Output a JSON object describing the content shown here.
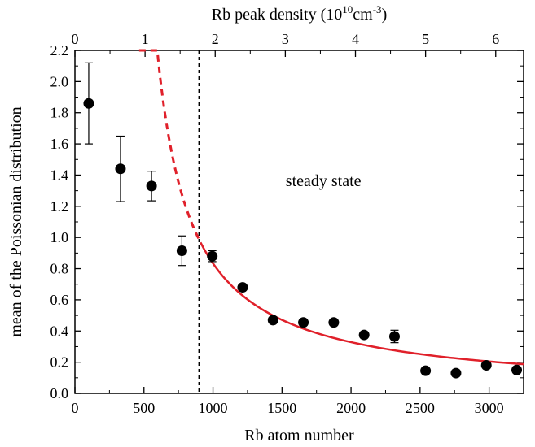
{
  "chart_data": {
    "type": "scatter",
    "xlabel": "Rb atom number",
    "ylabel": "mean of the Poissonian distribution",
    "top_xlabel": "Rb peak density (10",
    "top_xlabel_sup1": "10",
    "top_xlabel_mid": "cm",
    "top_xlabel_sup2": "-3",
    "top_xlabel_end": ")",
    "xlim": [
      0,
      3250
    ],
    "ylim": [
      0.0,
      2.2
    ],
    "x_ticks": [
      0,
      500,
      1000,
      1500,
      2000,
      2500,
      3000
    ],
    "x_tick_labels": [
      "0",
      "500",
      "1000",
      "1500",
      "2000",
      "2500",
      "3000"
    ],
    "y_ticks": [
      0.0,
      0.2,
      0.4,
      0.6,
      0.8,
      1.0,
      1.2,
      1.4,
      1.6,
      1.8,
      2.0,
      2.2
    ],
    "y_tick_labels": [
      "0.0",
      "0.2",
      "0.4",
      "0.6",
      "0.8",
      "1.0",
      "1.2",
      "1.4",
      "1.6",
      "1.8",
      "2.0",
      "2.2"
    ],
    "top_axis": {
      "ticks_density": [
        0,
        1,
        2,
        3,
        4,
        5,
        6
      ],
      "tick_labels": [
        "0",
        "1",
        "2",
        "3",
        "4",
        "5",
        "6"
      ],
      "atoms_per_density_unit": 508
    },
    "series": [
      {
        "points": [
          {
            "x": 100,
            "y": 1.86,
            "err": 0.26
          },
          {
            "x": 330,
            "y": 1.44,
            "err": 0.21
          },
          {
            "x": 555,
            "y": 1.33,
            "err": 0.095
          },
          {
            "x": 775,
            "y": 0.915,
            "err": 0.095
          },
          {
            "x": 995,
            "y": 0.88,
            "err": 0.035
          },
          {
            "x": 1215,
            "y": 0.68,
            "err": 0
          },
          {
            "x": 1435,
            "y": 0.47,
            "err": 0
          },
          {
            "x": 1655,
            "y": 0.455,
            "err": 0
          },
          {
            "x": 1875,
            "y": 0.455,
            "err": 0
          },
          {
            "x": 2095,
            "y": 0.375,
            "err": 0
          },
          {
            "x": 2315,
            "y": 0.365,
            "err": 0.04
          },
          {
            "x": 2540,
            "y": 0.145,
            "err": 0
          },
          {
            "x": 2760,
            "y": 0.13,
            "err": 0
          },
          {
            "x": 2980,
            "y": 0.18,
            "err": 0
          },
          {
            "x": 3200,
            "y": 0.15,
            "err": 0
          }
        ]
      }
    ],
    "fit": {
      "form": "a / (x - b)",
      "a": 542,
      "b": 350,
      "dashed_range": [
        465,
        910
      ],
      "solid_range": [
        910,
        3250
      ],
      "color": "#e0202a"
    },
    "threshold_x": 900,
    "annotation": "steady state",
    "annotation_at": [
      1800,
      1.33
    ],
    "grid": false,
    "legend": "none"
  }
}
